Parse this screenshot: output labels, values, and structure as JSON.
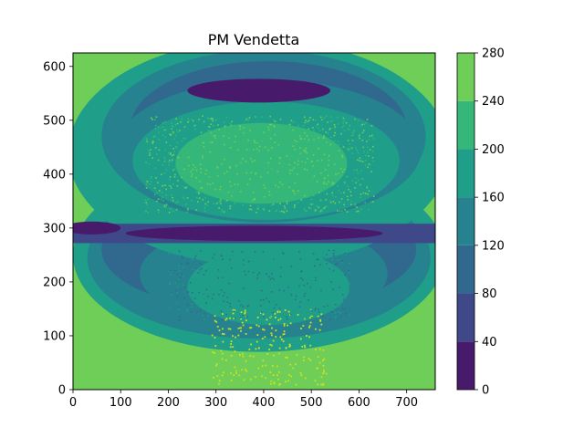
{
  "chart_data": {
    "type": "contourf",
    "title": "PM Vendetta",
    "xlabel": "",
    "ylabel": "",
    "xlim": [
      0,
      760
    ],
    "ylim": [
      0,
      625
    ],
    "x_ticks": [
      "0",
      "100",
      "200",
      "300",
      "400",
      "500",
      "600",
      "700"
    ],
    "y_ticks": [
      "0",
      "100",
      "200",
      "300",
      "400",
      "500",
      "600"
    ],
    "colorbar": {
      "levels": [
        0,
        40,
        80,
        120,
        160,
        200,
        240,
        280
      ],
      "tick_labels": [
        "0",
        "40",
        "80",
        "120",
        "160",
        "200",
        "240",
        "280"
      ],
      "colors": [
        "#481a6c",
        "#3f4889",
        "#31688e",
        "#26828e",
        "#1f9e89",
        "#35b779",
        "#6ece58",
        "#cde11d"
      ]
    },
    "regions": {
      "background_band": "200-240",
      "upper_lobe": {
        "x_center": 400,
        "y_center": 430,
        "x_half_width": 380,
        "y_half_height": 185
      },
      "lower_lobe": {
        "x_center": 390,
        "y_center": 230,
        "x_half_width": 380,
        "y_half_height": 160
      },
      "upper_dark_arc_y": 560,
      "middle_dark_band_y": 290,
      "bright_speckles_y_range": [
        10,
        150
      ]
    }
  }
}
